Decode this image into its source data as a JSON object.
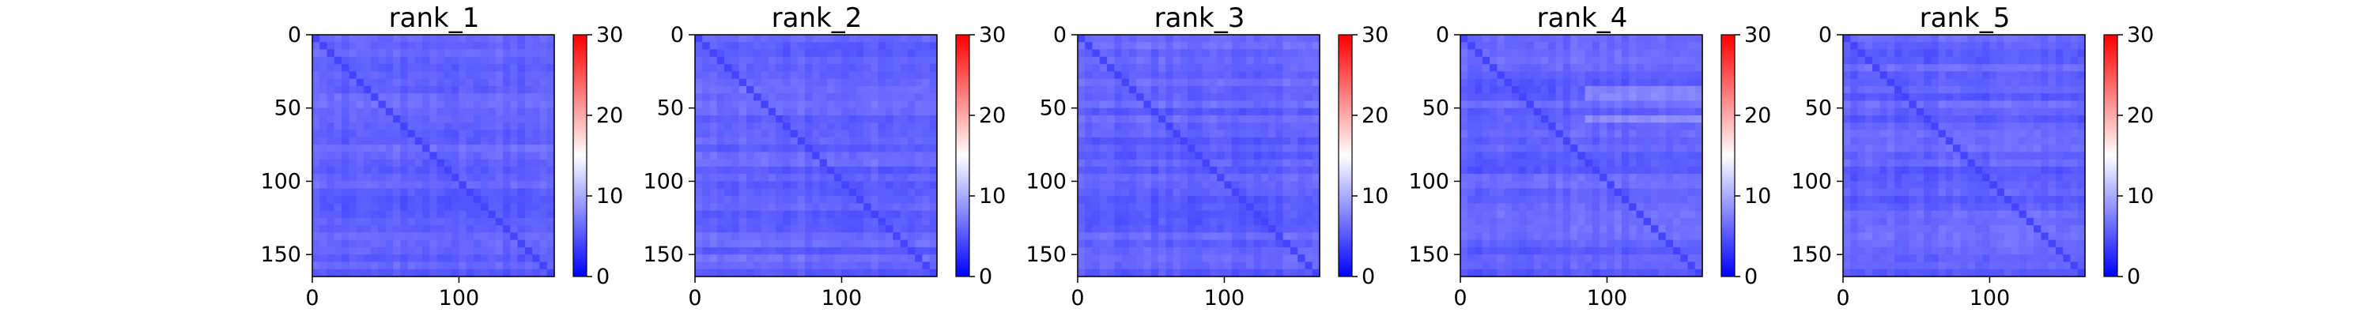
{
  "chart_data": [
    {
      "type": "heatmap",
      "title": "rank_1",
      "xlim": [
        0,
        165
      ],
      "ylim": [
        165,
        0
      ],
      "x_ticks": [
        0,
        100
      ],
      "y_ticks": [
        0,
        50,
        100,
        150
      ],
      "colorbar": {
        "min": 0,
        "max": 30,
        "ticks": [
          0,
          10,
          20,
          30
        ],
        "colormap": "bwr"
      },
      "matrix_size": 165,
      "diagonal_value": 4,
      "typical_value": 5,
      "bright_rows": [],
      "grid": false
    },
    {
      "type": "heatmap",
      "title": "rank_2",
      "xlim": [
        0,
        165
      ],
      "ylim": [
        165,
        0
      ],
      "x_ticks": [
        0,
        100
      ],
      "y_ticks": [
        0,
        50,
        100,
        150
      ],
      "colorbar": {
        "min": 0,
        "max": 30,
        "ticks": [
          0,
          10,
          20,
          30
        ],
        "colormap": "bwr"
      },
      "matrix_size": 165,
      "diagonal_value": 4,
      "typical_value": 5,
      "bright_rows": [],
      "grid": false
    },
    {
      "type": "heatmap",
      "title": "rank_3",
      "xlim": [
        0,
        165
      ],
      "ylim": [
        165,
        0
      ],
      "x_ticks": [
        0,
        100
      ],
      "y_ticks": [
        0,
        50,
        100,
        150
      ],
      "colorbar": {
        "min": 0,
        "max": 30,
        "ticks": [
          0,
          10,
          20,
          30
        ],
        "colormap": "bwr"
      },
      "matrix_size": 165,
      "diagonal_value": 4,
      "typical_value": 5,
      "bright_rows": [],
      "grid": false
    },
    {
      "type": "heatmap",
      "title": "rank_4",
      "xlim": [
        0,
        165
      ],
      "ylim": [
        165,
        0
      ],
      "x_ticks": [
        0,
        100
      ],
      "y_ticks": [
        0,
        50,
        100,
        150
      ],
      "colorbar": {
        "min": 0,
        "max": 30,
        "ticks": [
          0,
          10,
          20,
          30
        ],
        "colormap": "bwr"
      },
      "matrix_size": 165,
      "diagonal_value": 4,
      "typical_value": 5,
      "bright_rows": [
        38,
        55
      ],
      "grid": false
    },
    {
      "type": "heatmap",
      "title": "rank_5",
      "xlim": [
        0,
        165
      ],
      "ylim": [
        165,
        0
      ],
      "x_ticks": [
        0,
        100
      ],
      "y_ticks": [
        0,
        50,
        100,
        150
      ],
      "colorbar": {
        "min": 0,
        "max": 30,
        "ticks": [
          0,
          10,
          20,
          30
        ],
        "colormap": "bwr"
      },
      "matrix_size": 165,
      "diagonal_value": 4,
      "typical_value": 5,
      "bright_rows": [],
      "grid": false
    }
  ],
  "colors": {
    "low": "#0000ff",
    "mid": "#ffffff",
    "high": "#ff0000"
  }
}
